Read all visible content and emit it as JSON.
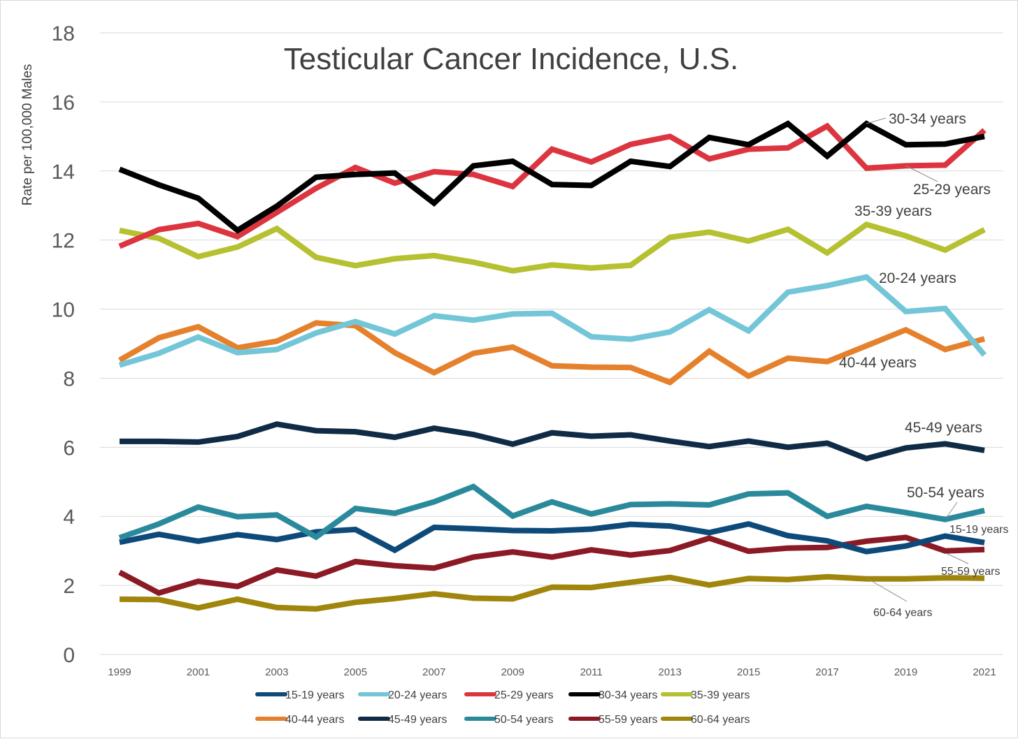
{
  "chart_data": {
    "type": "line",
    "title": "Testicular Cancer Incidence, U.S.",
    "ylabel": "Rate per 100,000 Males",
    "xlabel": "",
    "ylim": [
      0,
      18
    ],
    "yticks": [
      "0",
      "2",
      "4",
      "6",
      "8",
      "10",
      "12",
      "14",
      "16",
      "18"
    ],
    "x": [
      1999,
      2000,
      2001,
      2002,
      2003,
      2004,
      2005,
      2006,
      2007,
      2008,
      2009,
      2010,
      2011,
      2012,
      2013,
      2014,
      2015,
      2016,
      2017,
      2018,
      2019,
      2020,
      2021
    ],
    "xtick_labels": [
      "1999",
      "2001",
      "2003",
      "2005",
      "2007",
      "2009",
      "2011",
      "2013",
      "2015",
      "2017",
      "2019",
      "2021"
    ],
    "grid": true,
    "legend_position": "bottom",
    "series": [
      {
        "name": "15-19 years",
        "color": "#0d4a7a",
        "values": [
          3.25,
          3.48,
          3.28,
          3.47,
          3.33,
          3.55,
          3.62,
          3.02,
          3.68,
          3.64,
          3.59,
          3.58,
          3.63,
          3.77,
          3.72,
          3.53,
          3.78,
          3.44,
          3.29,
          2.98,
          3.14,
          3.43,
          3.24
        ]
      },
      {
        "name": "20-24 years",
        "color": "#73c6d8",
        "values": [
          8.38,
          8.72,
          9.19,
          8.74,
          8.83,
          9.31,
          9.64,
          9.28,
          9.81,
          9.68,
          9.86,
          9.88,
          9.2,
          9.13,
          9.34,
          9.98,
          9.37,
          10.49,
          10.68,
          10.93,
          9.93,
          10.02,
          8.67
        ]
      },
      {
        "name": "25-29 years",
        "color": "#dc3540",
        "values": [
          11.82,
          12.3,
          12.48,
          12.1,
          12.8,
          13.5,
          14.1,
          13.65,
          13.98,
          13.9,
          13.55,
          14.63,
          14.26,
          14.77,
          15.0,
          14.35,
          14.63,
          14.67,
          15.3,
          14.08,
          14.15,
          14.17,
          15.18
        ]
      },
      {
        "name": "30-34 years",
        "color": "#000000",
        "values": [
          14.05,
          13.6,
          13.21,
          12.28,
          12.98,
          13.82,
          13.9,
          13.94,
          13.07,
          14.15,
          14.28,
          13.61,
          13.58,
          14.28,
          14.13,
          14.97,
          14.76,
          15.37,
          14.43,
          15.37,
          14.76,
          14.78,
          15.0
        ]
      },
      {
        "name": "35-39 years",
        "color": "#b5c130",
        "values": [
          12.28,
          12.05,
          11.52,
          11.8,
          12.33,
          11.5,
          11.26,
          11.46,
          11.55,
          11.36,
          11.11,
          11.28,
          11.19,
          11.27,
          12.08,
          12.23,
          11.97,
          12.31,
          11.63,
          12.45,
          12.12,
          11.71,
          12.3
        ]
      },
      {
        "name": "40-44 years",
        "color": "#e5812d",
        "values": [
          8.52,
          9.17,
          9.49,
          8.88,
          9.07,
          9.6,
          9.52,
          8.74,
          8.16,
          8.72,
          8.9,
          8.36,
          8.32,
          8.31,
          7.88,
          8.78,
          8.06,
          8.58,
          8.48,
          8.94,
          9.4,
          8.83,
          9.14
        ]
      },
      {
        "name": "45-49 years",
        "color": "#0f2b45",
        "values": [
          6.17,
          6.17,
          6.15,
          6.31,
          6.67,
          6.48,
          6.45,
          6.29,
          6.55,
          6.37,
          6.09,
          6.42,
          6.32,
          6.36,
          6.18,
          6.02,
          6.18,
          6.0,
          6.12,
          5.67,
          5.98,
          6.1,
          5.91
        ]
      },
      {
        "name": "50-54 years",
        "color": "#2a8a9b",
        "values": [
          3.38,
          3.78,
          4.27,
          3.99,
          4.04,
          3.4,
          4.23,
          4.09,
          4.42,
          4.86,
          4.01,
          4.42,
          4.07,
          4.34,
          4.36,
          4.33,
          4.65,
          4.68,
          4.0,
          4.29,
          4.11,
          3.91,
          4.17
        ]
      },
      {
        "name": "55-59 years",
        "color": "#8b1a25",
        "values": [
          2.38,
          1.78,
          2.12,
          1.97,
          2.45,
          2.27,
          2.69,
          2.57,
          2.5,
          2.82,
          2.97,
          2.82,
          3.03,
          2.88,
          3.01,
          3.37,
          2.99,
          3.08,
          3.1,
          3.28,
          3.39,
          3.0,
          3.04
        ]
      },
      {
        "name": "60-64 years",
        "color": "#a0860c",
        "values": [
          1.6,
          1.59,
          1.35,
          1.6,
          1.36,
          1.32,
          1.51,
          1.62,
          1.76,
          1.63,
          1.61,
          1.95,
          1.94,
          2.09,
          2.23,
          2.01,
          2.2,
          2.17,
          2.25,
          2.19,
          2.19,
          2.22,
          2.21
        ]
      }
    ],
    "annotations": [
      {
        "text": "30-34 years",
        "series": "30-34 years"
      },
      {
        "text": "25-29 years",
        "series": "25-29 years"
      },
      {
        "text": "35-39 years",
        "series": "35-39 years"
      },
      {
        "text": "20-24 years",
        "series": "20-24 years"
      },
      {
        "text": "40-44 years",
        "series": "40-44 years"
      },
      {
        "text": "45-49 years",
        "series": "45-49 years"
      },
      {
        "text": "50-54 years",
        "series": "50-54 years"
      },
      {
        "text": "15-19 years",
        "series": "15-19 years"
      },
      {
        "text": "55-59 years",
        "series": "55-59 years"
      },
      {
        "text": "60-64 years",
        "series": "60-64 years"
      }
    ]
  }
}
